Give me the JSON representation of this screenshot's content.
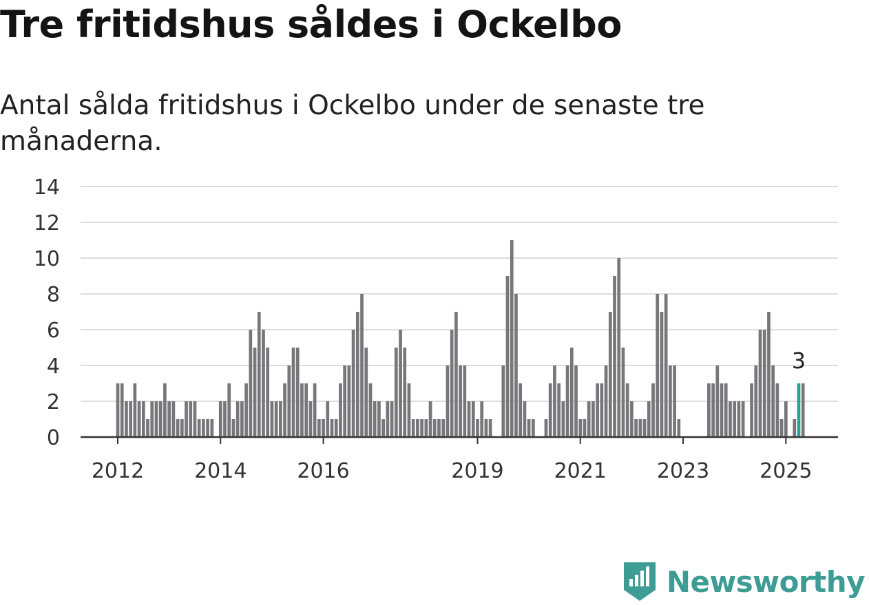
{
  "title": "Tre fritidshus såldes i Ockelbo",
  "subtitle": "Antal sålda fritidshus i Ockelbo under de senaste tre månaderna.",
  "logo": {
    "text": "Newsworthy",
    "icon": "bar-chart-pin-icon",
    "color": "#3d9c93"
  },
  "chart_data": {
    "type": "bar",
    "title": "Tre fritidshus såldes i Ockelbo",
    "subtitle": "Antal sålda fritidshus i Ockelbo under de senaste tre månaderna.",
    "xlabel": "",
    "ylabel": "",
    "ylim": [
      0,
      14
    ],
    "yticks": [
      0,
      2,
      4,
      6,
      8,
      10,
      12,
      14
    ],
    "grid": true,
    "bar_color": "#77767b",
    "highlight_color": "#2aa198",
    "x_tick_labels": [
      "2012",
      "2014",
      "2016",
      "2019",
      "2021",
      "2023",
      "2025"
    ],
    "x_tick_bar_index": [
      0,
      24,
      48,
      84,
      108,
      132,
      156
    ],
    "highlight_index": 159,
    "annotation": {
      "bar_index": 159,
      "text": "3"
    },
    "values": [
      3,
      3,
      2,
      2,
      3,
      2,
      2,
      1,
      2,
      2,
      2,
      3,
      2,
      2,
      1,
      1,
      2,
      2,
      2,
      1,
      1,
      1,
      1,
      0,
      2,
      2,
      3,
      1,
      2,
      2,
      3,
      6,
      5,
      7,
      6,
      5,
      2,
      2,
      2,
      3,
      4,
      5,
      5,
      3,
      3,
      2,
      3,
      1,
      1,
      2,
      1,
      1,
      3,
      4,
      4,
      6,
      7,
      8,
      5,
      3,
      2,
      2,
      1,
      2,
      2,
      5,
      6,
      5,
      3,
      1,
      1,
      1,
      1,
      2,
      1,
      1,
      1,
      4,
      6,
      7,
      4,
      4,
      2,
      2,
      1,
      2,
      1,
      1,
      0,
      0,
      4,
      9,
      11,
      8,
      3,
      2,
      1,
      1,
      0,
      0,
      1,
      3,
      4,
      3,
      2,
      4,
      5,
      4,
      1,
      1,
      2,
      2,
      3,
      3,
      4,
      7,
      9,
      10,
      5,
      3,
      2,
      1,
      1,
      1,
      2,
      3,
      8,
      7,
      8,
      4,
      4,
      1,
      0,
      0,
      0,
      0,
      0,
      0,
      3,
      3,
      4,
      3,
      3,
      2,
      2,
      2,
      2,
      0,
      3,
      4,
      6,
      6,
      7,
      4,
      3,
      1,
      2,
      0,
      1,
      3,
      3
    ]
  }
}
